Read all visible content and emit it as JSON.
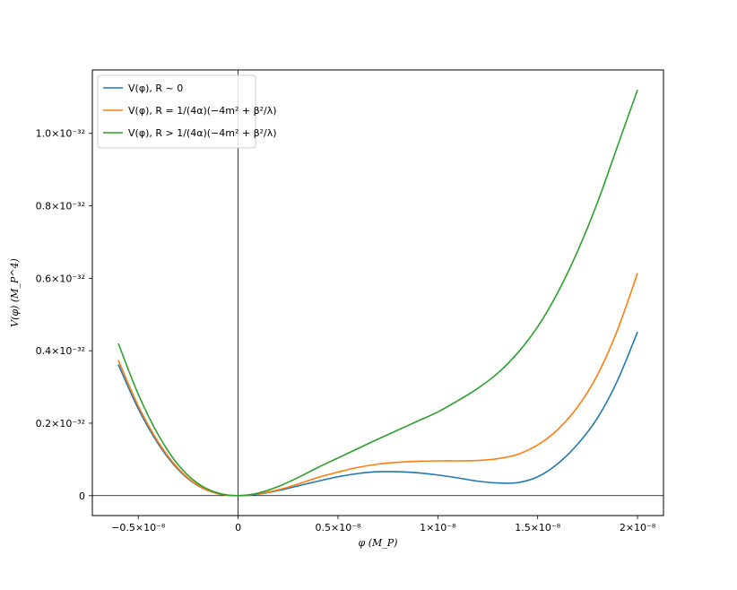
{
  "chart_data": {
    "type": "line",
    "title": "",
    "xlabel": "φ (M_P)",
    "ylabel": "V(φ) (M_P^4)",
    "xlim": [
      -0.73,
      2.13
    ],
    "ylim": [
      -0.055,
      1.175
    ],
    "x_unit": "1e-8",
    "y_unit": "1e-32",
    "x_ticks": [
      {
        "value": -0.5,
        "label": "−0.5×10⁻⁸"
      },
      {
        "value": 0,
        "label": "0"
      },
      {
        "value": 0.5,
        "label": "0.5×10⁻⁸"
      },
      {
        "value": 1.0,
        "label": "1×10⁻⁸"
      },
      {
        "value": 1.5,
        "label": "1.5×10⁻⁸"
      },
      {
        "value": 2.0,
        "label": "2×10⁻⁸"
      }
    ],
    "y_ticks": [
      {
        "value": 0,
        "label": "0"
      },
      {
        "value": 0.2,
        "label": "0.2×10⁻³²"
      },
      {
        "value": 0.4,
        "label": "0.4×10⁻³²"
      },
      {
        "value": 0.6,
        "label": "0.6×10⁻³²"
      },
      {
        "value": 0.8,
        "label": "0.8×10⁻³²"
      },
      {
        "value": 1.0,
        "label": "1.0×10⁻³²"
      }
    ],
    "reference_lines": {
      "horizontal_at_y": 0,
      "vertical_at_x": 0
    },
    "grid": false,
    "legend": {
      "position": "top-left"
    },
    "series": [
      {
        "name": "V(φ), R ~ 0",
        "color": "#1f77b4",
        "points": [
          [
            -0.6,
            0.362
          ],
          [
            -0.5,
            0.24
          ],
          [
            -0.4,
            0.143
          ],
          [
            -0.3,
            0.072
          ],
          [
            -0.2,
            0.027
          ],
          [
            -0.1,
            0.005
          ],
          [
            0,
            0
          ],
          [
            0.1,
            0.004
          ],
          [
            0.2,
            0.014
          ],
          [
            0.3,
            0.027
          ],
          [
            0.4,
            0.04
          ],
          [
            0.5,
            0.052
          ],
          [
            0.6,
            0.061
          ],
          [
            0.7,
            0.066
          ],
          [
            0.8,
            0.066
          ],
          [
            0.9,
            0.063
          ],
          [
            1.0,
            0.057
          ],
          [
            1.1,
            0.049
          ],
          [
            1.2,
            0.04
          ],
          [
            1.3,
            0.035
          ],
          [
            1.4,
            0.036
          ],
          [
            1.5,
            0.052
          ],
          [
            1.6,
            0.088
          ],
          [
            1.7,
            0.142
          ],
          [
            1.8,
            0.215
          ],
          [
            1.9,
            0.318
          ],
          [
            2.0,
            0.452
          ]
        ]
      },
      {
        "name": "V(φ), R = 1/(4α)(−4m² + β²/λ)",
        "color": "#ff7f0e",
        "points": [
          [
            -0.6,
            0.374
          ],
          [
            -0.5,
            0.248
          ],
          [
            -0.4,
            0.148
          ],
          [
            -0.3,
            0.075
          ],
          [
            -0.2,
            0.028
          ],
          [
            -0.1,
            0.005
          ],
          [
            0,
            0
          ],
          [
            0.1,
            0.005
          ],
          [
            0.2,
            0.016
          ],
          [
            0.3,
            0.032
          ],
          [
            0.4,
            0.05
          ],
          [
            0.5,
            0.065
          ],
          [
            0.6,
            0.078
          ],
          [
            0.7,
            0.087
          ],
          [
            0.8,
            0.092
          ],
          [
            0.9,
            0.095
          ],
          [
            1.0,
            0.096
          ],
          [
            1.1,
            0.096
          ],
          [
            1.2,
            0.097
          ],
          [
            1.3,
            0.102
          ],
          [
            1.4,
            0.114
          ],
          [
            1.5,
            0.14
          ],
          [
            1.6,
            0.182
          ],
          [
            1.7,
            0.245
          ],
          [
            1.8,
            0.334
          ],
          [
            1.9,
            0.458
          ],
          [
            2.0,
            0.614
          ]
        ]
      },
      {
        "name": "V(φ), R > 1/(4α)(−4m² + β²/λ)",
        "color": "#2ca02c",
        "points": [
          [
            -0.6,
            0.42
          ],
          [
            -0.5,
            0.28
          ],
          [
            -0.4,
            0.168
          ],
          [
            -0.3,
            0.085
          ],
          [
            -0.2,
            0.033
          ],
          [
            -0.1,
            0.007
          ],
          [
            0,
            0
          ],
          [
            0.1,
            0.007
          ],
          [
            0.2,
            0.025
          ],
          [
            0.3,
            0.05
          ],
          [
            0.4,
            0.078
          ],
          [
            0.5,
            0.104
          ],
          [
            0.6,
            0.13
          ],
          [
            0.7,
            0.156
          ],
          [
            0.8,
            0.181
          ],
          [
            0.9,
            0.206
          ],
          [
            1.0,
            0.231
          ],
          [
            1.1,
            0.262
          ],
          [
            1.2,
            0.296
          ],
          [
            1.3,
            0.338
          ],
          [
            1.4,
            0.394
          ],
          [
            1.5,
            0.466
          ],
          [
            1.6,
            0.56
          ],
          [
            1.7,
            0.675
          ],
          [
            1.8,
            0.81
          ],
          [
            1.9,
            0.965
          ],
          [
            2.0,
            1.12
          ]
        ]
      }
    ]
  }
}
